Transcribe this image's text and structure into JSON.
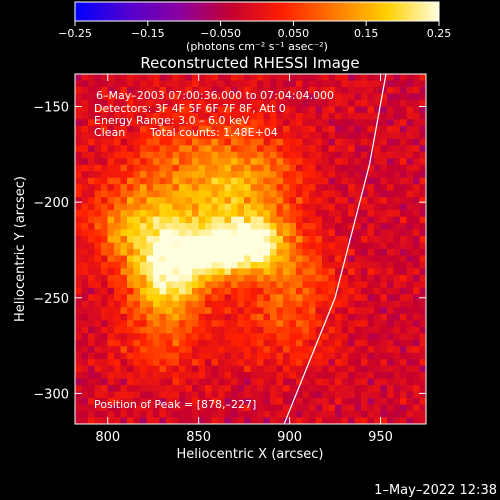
{
  "chart_data": {
    "type": "heatmap",
    "title": "Reconstructed RHESSI Image",
    "xlabel": "Heliocentric X (arcsec)",
    "ylabel": "Heliocentric Y (arcsec)",
    "xlim": [
      782,
      975
    ],
    "ylim": [
      -316,
      -133
    ],
    "x_ticks": [
      800,
      850,
      900,
      950
    ],
    "x_tick_labels": [
      "800",
      "850",
      "900",
      "950"
    ],
    "y_ticks": [
      -150,
      -200,
      -250,
      -300
    ],
    "y_tick_labels": [
      "−150",
      "−200",
      "−250",
      "−300"
    ],
    "colorbar": {
      "min": -0.25,
      "max": 0.25,
      "ticks": [
        -0.25,
        -0.15,
        -0.05,
        0.05,
        0.15,
        0.25
      ],
      "tick_labels": [
        "−0.25",
        "−0.15",
        "−0.050",
        "0.050",
        "0.15",
        "0.25"
      ],
      "label": "(photons cm⁻² s⁻¹ asec⁻²)",
      "colors": [
        "#0000ff",
        "#5000d0",
        "#8a00a0",
        "#c40030",
        "#ff2000",
        "#ff7a00",
        "#ffd000",
        "#ffffe0"
      ]
    },
    "annotations": {
      "time_range": "6–May–2003 07:00:36.000 to 07:04:04.000",
      "detectors": "Detectors: 3F 4F 5F 6F 7F 8F, Att 0",
      "energy_range": "Energy Range: 3.0 – 6.0 keV",
      "method": "Clean",
      "total_counts": "Total counts: 1.48E+04",
      "peak": "Position of Peak = [878,–227]"
    },
    "peak": [
      878,
      -227
    ],
    "sources": [
      {
        "x": 880,
        "y": -222,
        "sx": 14,
        "sy": 10,
        "amp": 0.23
      },
      {
        "x": 832,
        "y": -240,
        "sx": 14,
        "sy": 16,
        "amp": 0.21
      },
      {
        "x": 855,
        "y": -228,
        "sx": 14,
        "sy": 10,
        "amp": 0.17
      },
      {
        "x": 845,
        "y": -195,
        "sx": 30,
        "sy": 26,
        "amp": 0.13
      },
      {
        "x": 815,
        "y": -215,
        "sx": 18,
        "sy": 14,
        "amp": 0.11
      },
      {
        "x": 880,
        "y": -190,
        "sx": 20,
        "sy": 20,
        "amp": 0.09
      },
      {
        "x": 895,
        "y": -265,
        "sx": 20,
        "sy": 16,
        "amp": 0.07
      },
      {
        "x": 830,
        "y": -275,
        "sx": 20,
        "sy": 14,
        "amp": 0.06
      },
      {
        "x": 905,
        "y": -240,
        "sx": 16,
        "sy": 14,
        "amp": 0.07
      }
    ],
    "limb_curve": [
      [
        897,
        -316
      ],
      [
        925,
        -250
      ],
      [
        944,
        -180
      ],
      [
        953,
        -133
      ]
    ],
    "background_level": -0.02
  },
  "footer": {
    "timestamp": "1–May–2022 12:38"
  }
}
